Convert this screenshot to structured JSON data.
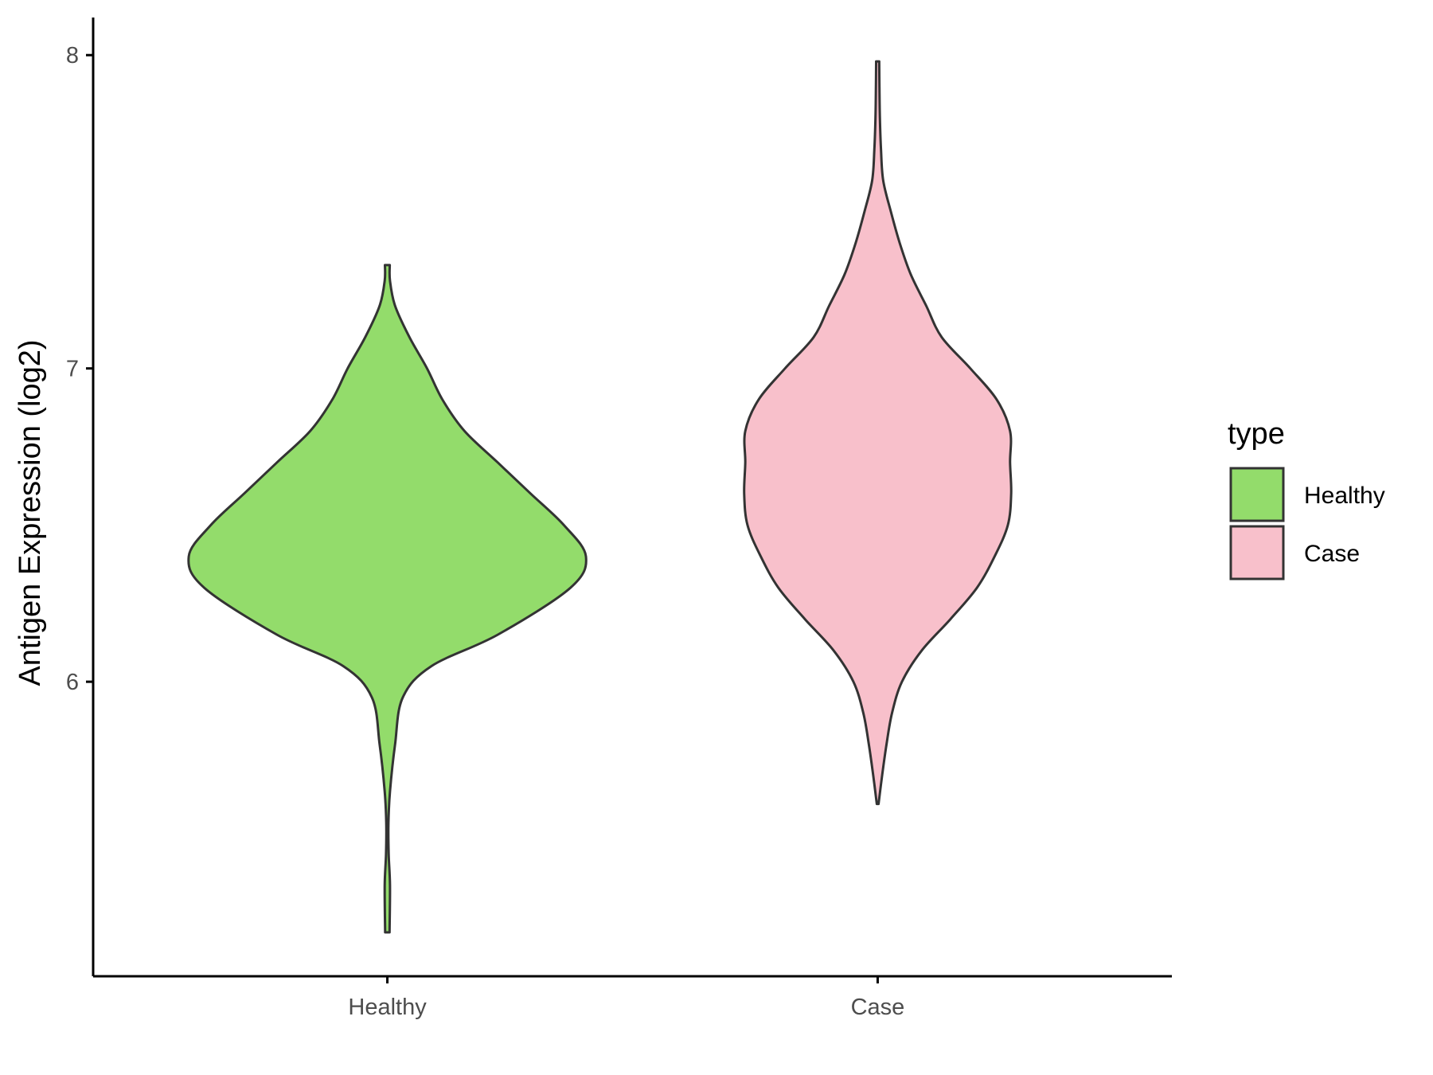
{
  "chart_data": {
    "type": "violin",
    "title": "",
    "xlabel": "",
    "ylabel": "Antigen Expression (log2)",
    "categories": [
      "Healthy",
      "Case"
    ],
    "y_ticks": [
      6,
      7,
      8
    ],
    "ylim": [
      5.06,
      8.12
    ],
    "grid": false,
    "legend": {
      "title": "type",
      "position": "right",
      "entries": [
        {
          "label": "Healthy",
          "color": "#93dc6b"
        },
        {
          "label": "Case",
          "color": "#f8c0cb"
        }
      ]
    },
    "series": [
      {
        "category": "Healthy",
        "color": "#93dc6b",
        "min": 5.2,
        "max": 7.33,
        "density_profile": [
          [
            5.2,
            0.01
          ],
          [
            5.35,
            0.012
          ],
          [
            5.45,
            0.006
          ],
          [
            5.55,
            0.005
          ],
          [
            5.65,
            0.012
          ],
          [
            5.8,
            0.035
          ],
          [
            5.95,
            0.07
          ],
          [
            6.05,
            0.2
          ],
          [
            6.15,
            0.5
          ],
          [
            6.3,
            0.83
          ],
          [
            6.4,
            0.9
          ],
          [
            6.5,
            0.8
          ],
          [
            6.6,
            0.65
          ],
          [
            6.7,
            0.5
          ],
          [
            6.8,
            0.35
          ],
          [
            6.9,
            0.25
          ],
          [
            7.0,
            0.18
          ],
          [
            7.1,
            0.1
          ],
          [
            7.2,
            0.035
          ],
          [
            7.28,
            0.012
          ],
          [
            7.33,
            0.011
          ]
        ]
      },
      {
        "category": "Case",
        "color": "#f8c0cb",
        "min": 5.61,
        "max": 7.98,
        "density_profile": [
          [
            5.61,
            0.004
          ],
          [
            5.7,
            0.02
          ],
          [
            5.8,
            0.04
          ],
          [
            5.9,
            0.065
          ],
          [
            6.0,
            0.11
          ],
          [
            6.1,
            0.2
          ],
          [
            6.2,
            0.33
          ],
          [
            6.3,
            0.45
          ],
          [
            6.4,
            0.53
          ],
          [
            6.5,
            0.59
          ],
          [
            6.6,
            0.605
          ],
          [
            6.7,
            0.6
          ],
          [
            6.8,
            0.6
          ],
          [
            6.9,
            0.54
          ],
          [
            7.0,
            0.42
          ],
          [
            7.1,
            0.29
          ],
          [
            7.2,
            0.22
          ],
          [
            7.3,
            0.15
          ],
          [
            7.4,
            0.1
          ],
          [
            7.5,
            0.06
          ],
          [
            7.6,
            0.025
          ],
          [
            7.7,
            0.015
          ],
          [
            7.8,
            0.01
          ],
          [
            7.9,
            0.008
          ],
          [
            7.98,
            0.007
          ]
        ]
      }
    ]
  }
}
